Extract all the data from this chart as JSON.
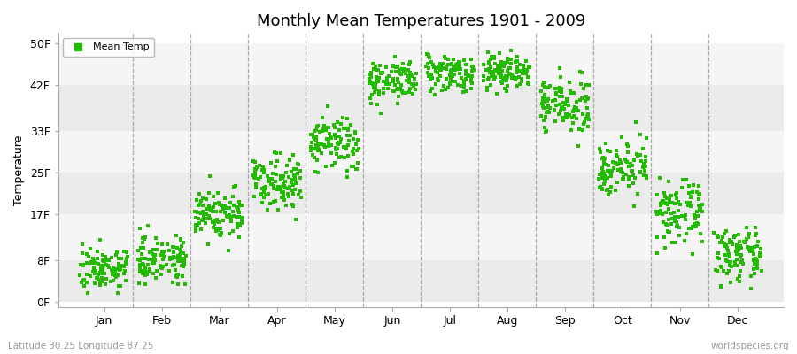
{
  "title": "Monthly Mean Temperatures 1901 - 2009",
  "ylabel": "Temperature",
  "yticks": [
    0,
    8,
    17,
    25,
    33,
    42,
    50
  ],
  "ytick_labels": [
    "0F",
    "8F",
    "17F",
    "25F",
    "33F",
    "42F",
    "50F"
  ],
  "ylim": [
    -1,
    52
  ],
  "xlim": [
    0.2,
    12.8
  ],
  "months": [
    "Jan",
    "Feb",
    "Mar",
    "Apr",
    "May",
    "Jun",
    "Jul",
    "Aug",
    "Sep",
    "Oct",
    "Nov",
    "Dec"
  ],
  "dot_color": "#22bb00",
  "dot_size": 5,
  "background_color": "#ffffff",
  "plot_bg_color": "#ffffff",
  "subtitle_left": "Latitude 30.25 Longitude 87.25",
  "subtitle_right": "worldspecies.org",
  "legend_label": "Mean Temp",
  "n_years": 109,
  "monthly_means": [
    6.5,
    8.5,
    17.0,
    23.5,
    30.5,
    43.0,
    44.5,
    44.5,
    38.0,
    26.0,
    17.0,
    9.0
  ],
  "monthly_stds": [
    2.0,
    2.2,
    2.5,
    2.5,
    2.8,
    2.0,
    1.8,
    1.8,
    2.5,
    2.5,
    3.0,
    2.5
  ],
  "band_colors": [
    "#ebebeb",
    "#f5f5f5"
  ],
  "vline_color": "#888888",
  "vline_positions": [
    1.5,
    2.5,
    3.5,
    4.5,
    5.5,
    6.5,
    7.5,
    8.5,
    9.5,
    10.5,
    11.5
  ]
}
